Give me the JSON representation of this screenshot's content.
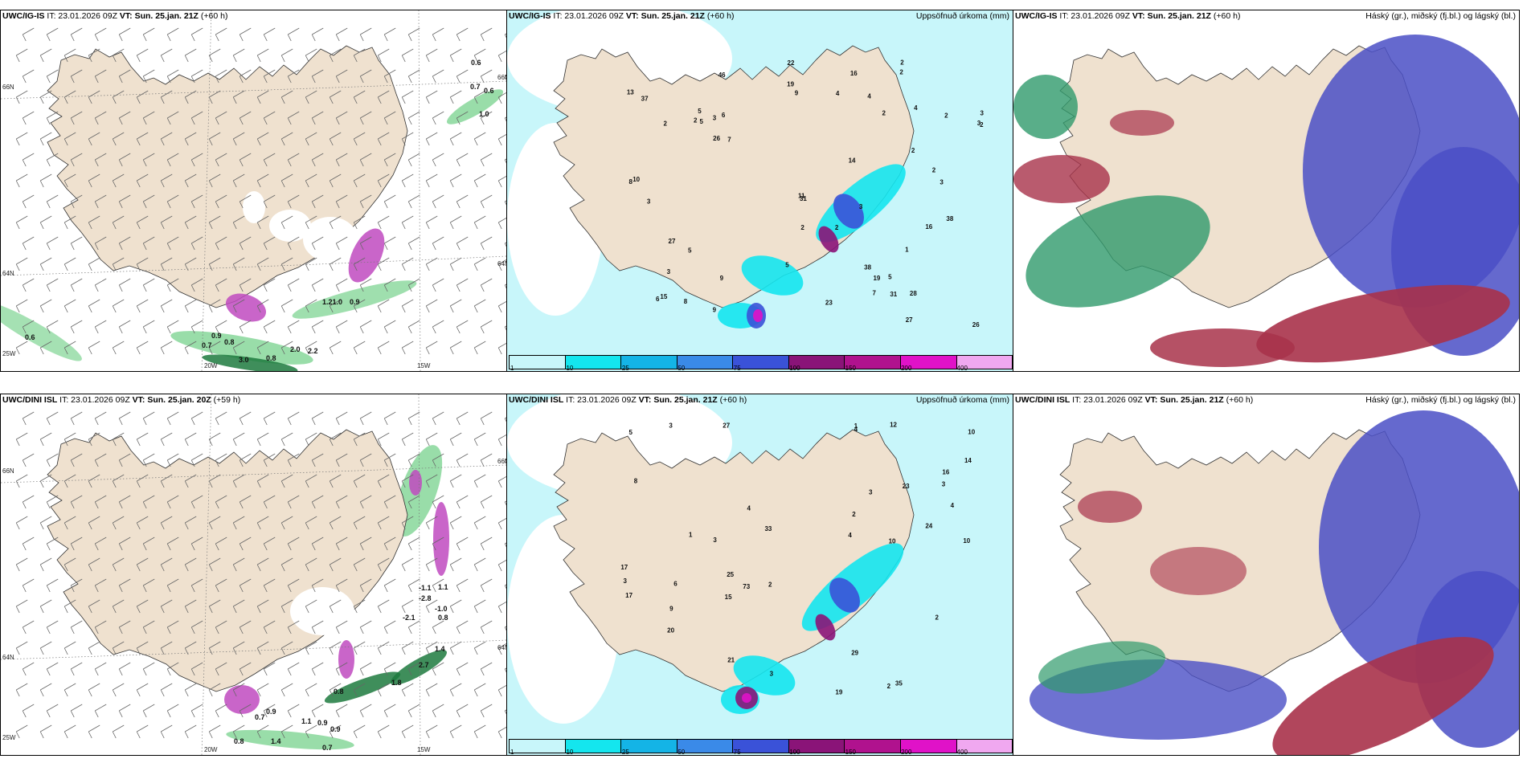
{
  "colors": {
    "land": "#efe1cf",
    "ocean": "#ffffff",
    "precip_light": "#c8f6fa",
    "precip_cyan": "#14e6ee",
    "precip_blue": "#3a52d8",
    "precip_purple": "#8a1478",
    "precip_magenta": "#e012c8",
    "high_cloud_green": "#2f9a6b",
    "mid_cloud_red": "#a8324a",
    "low_cloud_blue": "#4a4fc6",
    "green_shade": "#7fd493"
  },
  "panels": [
    {
      "id": "top-left",
      "model": "UWC/IG-IS",
      "it_text": "IT: 23.01.2026 09Z",
      "vt_label": "VT:",
      "vt_value": "Sun. 25.jan. 21Z",
      "lead": "(+60 h)",
      "right_title": "",
      "values": [
        "0.6",
        "0.7",
        "0.6",
        "1.0",
        "1.21.0",
        "0.9",
        "0.9",
        "0.7",
        "0.8",
        "3.0",
        "0.8",
        "2.0",
        "2.2",
        "0.6"
      ],
      "grid_labels": [
        "66N",
        "64N",
        "20W",
        "15W",
        "25W",
        "66N",
        "64N"
      ]
    },
    {
      "id": "top-middle",
      "model": "UWC/IG-IS",
      "it_text": "IT: 23.01.2026 09Z",
      "vt_label": "VT:",
      "vt_value": "Sun. 25.jan. 21Z",
      "lead": "(+60 h)",
      "right_title": "Uppsöfnuð úrkoma (mm)",
      "values": [
        "2",
        "2",
        "2",
        "3",
        "2",
        "2",
        "3",
        "2",
        "5",
        "2",
        "6",
        "9",
        "4",
        "3",
        "2",
        "3",
        "8",
        "3",
        "1",
        "19",
        "23",
        "31",
        "4",
        "5",
        "11",
        "4",
        "2",
        "37",
        "38",
        "7",
        "16",
        "46",
        "2",
        "16",
        "8",
        "5",
        "14",
        "19",
        "26",
        "27",
        "27",
        "28",
        "26",
        "13",
        "10",
        "38",
        "31",
        "22",
        "9",
        "9",
        "7",
        "6",
        "3",
        "15",
        "5",
        "2",
        "3",
        "5"
      ],
      "colorbar": [
        "1",
        "10",
        "25",
        "50",
        "75",
        "100",
        "150",
        "200",
        "400"
      ]
    },
    {
      "id": "top-right",
      "model": "UWC/IG-IS",
      "it_text": "IT: 23.01.2026 09Z",
      "vt_label": "VT:",
      "vt_value": "Sun. 25.jan. 21Z",
      "lead": "(+60 h)",
      "right_title": "Háský (gr.), miðský (fj.bl.) og lágský (bl.)"
    },
    {
      "id": "bottom-left",
      "model": "UWC/DINI ISL",
      "it_text": "IT: 23.01.2026 09Z",
      "vt_label": "VT:",
      "vt_value": "Sun. 25.jan. 20Z",
      "lead": "(+59 h)",
      "right_title": "",
      "values": [
        "-1.1",
        "-2.8",
        "-1.0",
        "0.8",
        "-2.1",
        "1.1",
        "1.4",
        "2.7",
        "1.8",
        "0.9",
        "0.8",
        "1.1",
        "0.9",
        "0.9",
        "0.8",
        "0.7",
        "1.4",
        "0.7"
      ],
      "grid_labels": [
        "66N",
        "64N",
        "20W",
        "15W",
        "25W",
        "66N",
        "64N"
      ]
    },
    {
      "id": "bottom-middle",
      "model": "UWC/DINI ISL",
      "it_text": "IT: 23.01.2026 09Z",
      "vt_label": "VT:",
      "vt_value": "Sun. 25.jan. 21Z",
      "lead": "(+60 h)",
      "right_title": "Uppsöfnuð úrkoma (mm)",
      "values": [
        "2",
        "3",
        "3",
        "3",
        "2",
        "4",
        "3",
        "5",
        "3",
        "10",
        "1",
        "17",
        "19",
        "12",
        "29",
        "33",
        "27",
        "24",
        "73",
        "15",
        "17",
        "14",
        "9",
        "16",
        "25",
        "35",
        "23",
        "21",
        "20",
        "10",
        "4",
        "8",
        "6",
        "4",
        "10",
        "4",
        "1",
        "2",
        "3",
        "2"
      ],
      "colorbar": [
        "1",
        "10",
        "25",
        "50",
        "75",
        "100",
        "150",
        "200",
        "400"
      ]
    },
    {
      "id": "bottom-right",
      "model": "UWC/DINI ISL",
      "it_text": "IT: 23.01.2026 09Z",
      "vt_label": "VT:",
      "vt_value": "Sun. 25.jan. 21Z",
      "lead": "(+60 h)",
      "right_title": "Háský (gr.), miðský (fj.bl.) og lágský (bl.)"
    }
  ],
  "colorbar_colors": [
    "#c8f6fa",
    "#14e6ee",
    "#14b4e6",
    "#3a8ae8",
    "#3a52d8",
    "#8a1478",
    "#b0128e",
    "#e012c8",
    "#f0a8f0"
  ]
}
